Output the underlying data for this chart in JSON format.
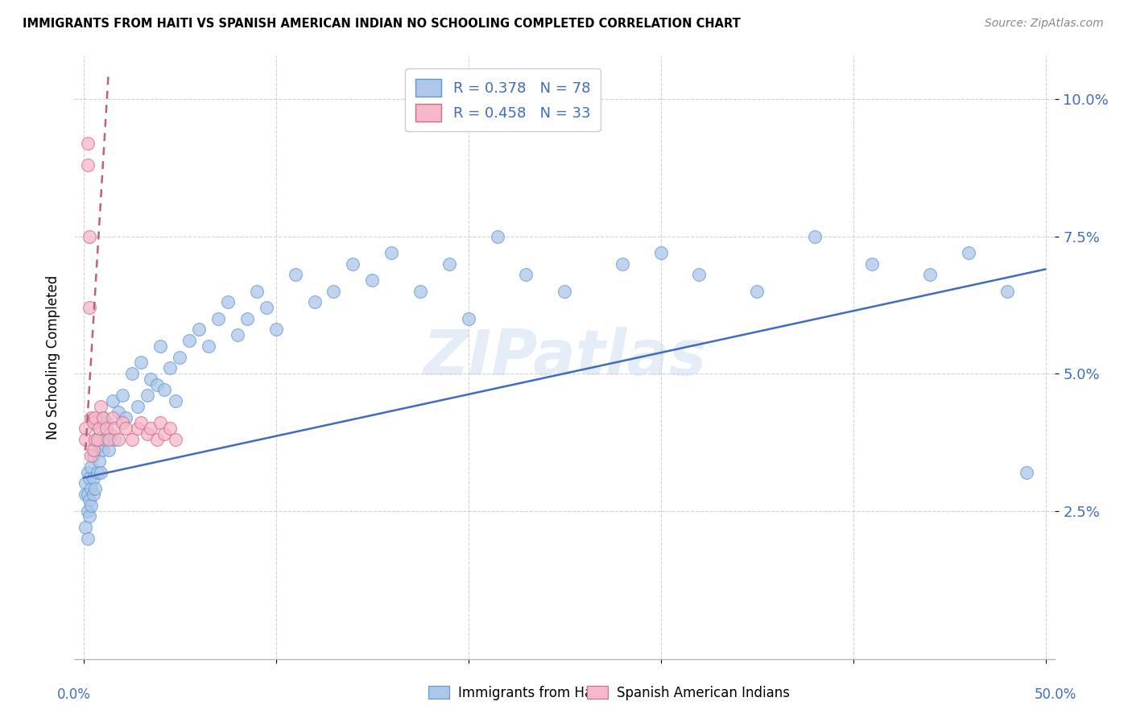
{
  "title": "IMMIGRANTS FROM HAITI VS SPANISH AMERICAN INDIAN NO SCHOOLING COMPLETED CORRELATION CHART",
  "source": "Source: ZipAtlas.com",
  "ylabel": "No Schooling Completed",
  "ytick_labels": [
    "2.5%",
    "5.0%",
    "7.5%",
    "10.0%"
  ],
  "ytick_vals": [
    0.025,
    0.05,
    0.075,
    0.1
  ],
  "xtick_vals": [
    0.0,
    0.1,
    0.2,
    0.3,
    0.4,
    0.5
  ],
  "xlim": [
    -0.005,
    0.505
  ],
  "ylim": [
    -0.002,
    0.108
  ],
  "legend_r1": "R = 0.378",
  "legend_n1": "N = 78",
  "legend_r2": "R = 0.458",
  "legend_n2": "N = 33",
  "haiti_color": "#aec6e8",
  "haiti_edge": "#5b9bd5",
  "spanish_color": "#f4b8c8",
  "spanish_edge": "#d4688a",
  "haiti_line_color": "#3e6cbf",
  "spanish_line_color": "#c0607a",
  "watermark": "ZIPatlas",
  "haiti_x": [
    0.001,
    0.001,
    0.001,
    0.002,
    0.002,
    0.002,
    0.002,
    0.003,
    0.003,
    0.003,
    0.004,
    0.004,
    0.004,
    0.005,
    0.005,
    0.005,
    0.006,
    0.006,
    0.007,
    0.007,
    0.008,
    0.008,
    0.009,
    0.009,
    0.01,
    0.01,
    0.011,
    0.012,
    0.013,
    0.014,
    0.015,
    0.016,
    0.018,
    0.02,
    0.022,
    0.025,
    0.028,
    0.03,
    0.033,
    0.035,
    0.038,
    0.04,
    0.042,
    0.045,
    0.048,
    0.05,
    0.055,
    0.06,
    0.065,
    0.07,
    0.075,
    0.08,
    0.085,
    0.09,
    0.095,
    0.1,
    0.11,
    0.12,
    0.13,
    0.14,
    0.15,
    0.16,
    0.175,
    0.19,
    0.2,
    0.215,
    0.23,
    0.25,
    0.28,
    0.3,
    0.32,
    0.35,
    0.38,
    0.41,
    0.44,
    0.46,
    0.48,
    0.49
  ],
  "haiti_y": [
    0.03,
    0.028,
    0.022,
    0.032,
    0.025,
    0.028,
    0.02,
    0.031,
    0.027,
    0.024,
    0.033,
    0.026,
    0.029,
    0.035,
    0.028,
    0.031,
    0.036,
    0.029,
    0.038,
    0.032,
    0.04,
    0.034,
    0.037,
    0.032,
    0.042,
    0.036,
    0.038,
    0.041,
    0.036,
    0.039,
    0.045,
    0.038,
    0.043,
    0.046,
    0.042,
    0.05,
    0.044,
    0.052,
    0.046,
    0.049,
    0.048,
    0.055,
    0.047,
    0.051,
    0.045,
    0.053,
    0.056,
    0.058,
    0.055,
    0.06,
    0.063,
    0.057,
    0.06,
    0.065,
    0.062,
    0.058,
    0.068,
    0.063,
    0.065,
    0.07,
    0.067,
    0.072,
    0.065,
    0.07,
    0.06,
    0.075,
    0.068,
    0.065,
    0.07,
    0.072,
    0.068,
    0.065,
    0.075,
    0.07,
    0.068,
    0.072,
    0.065,
    0.032
  ],
  "spanish_x": [
    0.001,
    0.001,
    0.002,
    0.002,
    0.003,
    0.003,
    0.004,
    0.004,
    0.005,
    0.005,
    0.006,
    0.006,
    0.007,
    0.008,
    0.009,
    0.01,
    0.012,
    0.013,
    0.015,
    0.016,
    0.018,
    0.02,
    0.022,
    0.025,
    0.028,
    0.03,
    0.033,
    0.035,
    0.038,
    0.04,
    0.042,
    0.045,
    0.048
  ],
  "spanish_y": [
    0.04,
    0.038,
    0.088,
    0.092,
    0.075,
    0.062,
    0.035,
    0.042,
    0.041,
    0.036,
    0.038,
    0.042,
    0.038,
    0.04,
    0.044,
    0.042,
    0.04,
    0.038,
    0.042,
    0.04,
    0.038,
    0.041,
    0.04,
    0.038,
    0.04,
    0.041,
    0.039,
    0.04,
    0.038,
    0.041,
    0.039,
    0.04,
    0.038
  ],
  "haiti_line_x": [
    0.0,
    0.5
  ],
  "haiti_line_y_intercept": 0.031,
  "haiti_line_slope": 0.076,
  "spanish_line_x_start": 0.001,
  "spanish_line_x_end": 0.013,
  "spanish_line_y_start": 0.036,
  "spanish_line_y_end": 0.105
}
